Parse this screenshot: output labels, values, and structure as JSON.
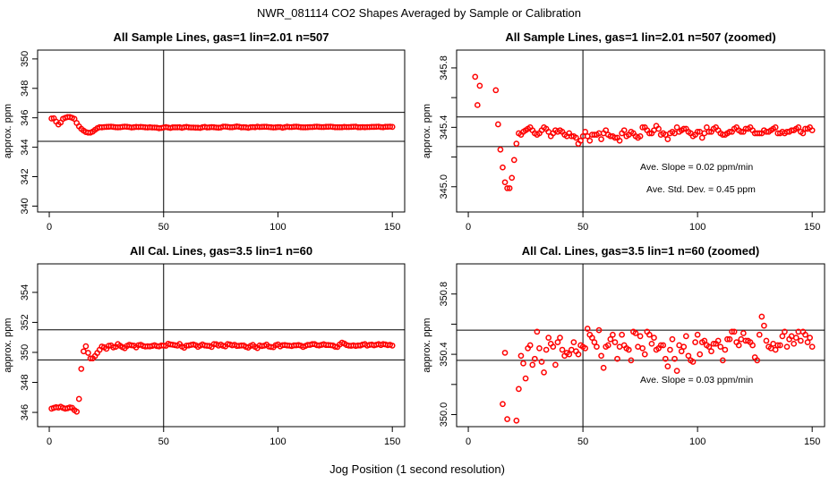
{
  "title": "NWR_081114  CO2 Shapes Averaged by Sample or Calibration",
  "xlabel": "Jog Position (1 second resolution)",
  "colors": {
    "points": "#ff0000",
    "axes": "#000000"
  },
  "chart_data": {
    "type": "scatter",
    "x_start": 1,
    "xlim": [
      -5.1,
      155.4
    ],
    "xticks": [
      0,
      50,
      100,
      150
    ],
    "vline_x": 50,
    "datasets": {
      "sample": [
        345.95,
        345.97,
        345.74,
        345.55,
        345.68,
        345.93,
        346.0,
        346.05,
        346.05,
        346.0,
        345.93,
        345.65,
        345.42,
        345.25,
        345.13,
        345.03,
        344.99,
        344.99,
        345.06,
        345.18,
        345.29,
        345.36,
        345.35,
        345.37,
        345.38,
        345.39,
        345.4,
        345.38,
        345.36,
        345.35,
        345.36,
        345.38,
        345.4,
        345.39,
        345.37,
        345.34,
        345.36,
        345.38,
        345.37,
        345.38,
        345.37,
        345.35,
        345.34,
        345.36,
        345.34,
        345.34,
        345.33,
        345.29,
        345.31,
        345.34,
        345.37,
        345.34,
        345.31,
        345.35,
        345.35,
        345.35,
        345.36,
        345.32,
        345.36,
        345.38,
        345.35,
        345.34,
        345.34,
        345.33,
        345.33,
        345.31,
        345.36,
        345.38,
        345.34,
        345.35,
        345.37,
        345.36,
        345.34,
        345.33,
        345.34,
        345.4,
        345.4,
        345.38,
        345.36,
        345.36,
        345.38,
        345.41,
        345.39,
        345.35,
        345.36,
        345.35,
        345.32,
        345.36,
        345.37,
        345.36,
        345.4,
        345.37,
        345.38,
        345.39,
        345.39,
        345.37,
        345.36,
        345.34,
        345.35,
        345.37,
        345.37,
        345.33,
        345.36,
        345.4,
        345.37,
        345.37,
        345.39,
        345.4,
        345.38,
        345.36,
        345.35,
        345.35,
        345.36,
        345.37,
        345.37,
        345.39,
        345.4,
        345.38,
        345.37,
        345.37,
        345.39,
        345.39,
        345.4,
        345.38,
        345.36,
        345.36,
        345.36,
        345.36,
        345.38,
        345.37,
        345.37,
        345.38,
        345.39,
        345.4,
        345.36,
        345.36,
        345.37,
        345.36,
        345.37,
        345.37,
        345.38,
        345.38,
        345.39,
        345.4,
        345.37,
        345.36,
        345.39,
        345.39,
        345.4,
        345.38
      ],
      "cal": [
        346.25,
        346.3,
        346.35,
        346.32,
        346.38,
        346.3,
        346.25,
        346.28,
        346.33,
        346.3,
        346.15,
        346.05,
        346.9,
        348.9,
        350.07,
        350.41,
        349.97,
        349.6,
        349.6,
        349.75,
        349.96,
        350.17,
        350.39,
        350.34,
        350.24,
        350.44,
        350.46,
        350.33,
        350.37,
        350.55,
        350.44,
        350.35,
        350.28,
        350.43,
        350.51,
        350.47,
        350.45,
        350.33,
        350.48,
        350.51,
        350.43,
        350.39,
        350.41,
        350.4,
        350.43,
        350.48,
        350.42,
        350.4,
        350.46,
        350.45,
        350.44,
        350.57,
        350.53,
        350.51,
        350.48,
        350.45,
        350.56,
        350.39,
        350.31,
        350.45,
        350.46,
        350.5,
        350.53,
        350.48,
        350.37,
        350.45,
        350.53,
        350.46,
        350.44,
        350.43,
        350.36,
        350.55,
        350.54,
        350.45,
        350.52,
        350.44,
        350.4,
        350.55,
        350.53,
        350.47,
        350.51,
        350.43,
        350.44,
        350.46,
        350.46,
        350.37,
        350.32,
        350.43,
        350.5,
        350.37,
        350.29,
        350.46,
        350.42,
        350.45,
        350.52,
        350.39,
        350.36,
        350.35,
        350.48,
        350.53,
        350.4,
        350.48,
        350.49,
        350.46,
        350.45,
        350.42,
        350.47,
        350.47,
        350.49,
        350.45,
        350.36,
        350.43,
        350.5,
        350.5,
        350.55,
        350.55,
        350.48,
        350.46,
        350.5,
        350.54,
        350.49,
        350.49,
        350.48,
        350.46,
        350.38,
        350.36,
        350.53,
        350.65,
        350.59,
        350.49,
        350.45,
        350.44,
        350.47,
        350.43,
        350.46,
        350.46,
        350.52,
        350.55,
        350.45,
        350.5,
        350.52,
        350.47,
        350.51,
        350.55,
        350.49,
        350.55,
        350.53,
        350.48,
        350.51,
        350.45
      ]
    },
    "panels": [
      {
        "title": "All Sample Lines, gas=1 lin=2.01 n=507",
        "dataset": "sample",
        "ylabel": "approx. ppm",
        "ylim": [
          339.6,
          350.6
        ],
        "yticks": [
          340,
          342,
          344,
          346,
          348,
          350
        ],
        "ylabels": [
          "340",
          "342",
          "344",
          "346",
          "348",
          "350"
        ],
        "hlines": [
          346.37,
          344.4
        ],
        "annotations": []
      },
      {
        "title": "All Sample Lines, gas=1 lin=2.01 n=507 (zoomed)",
        "dataset": "sample",
        "ylabel": "approx. ppm",
        "ylim": [
          344.83,
          345.92
        ],
        "yticks": [
          345.0,
          345.2,
          345.4,
          345.6,
          345.8
        ],
        "ylabels": [
          "345.0",
          "",
          "345.4",
          "",
          "345.8"
        ],
        "hlines": [
          345.47,
          345.27
        ],
        "annotations": [
          "Ave. Slope =  0.02  ppm/min",
          "Ave. Std. Dev. =  0.45  ppm"
        ]
      },
      {
        "title": "All Cal. Lines, gas=3.5 lin=1 n=60",
        "dataset": "cal",
        "ylabel": "approx. ppm",
        "ylim": [
          345.05,
          355.9
        ],
        "yticks": [
          346,
          348,
          350,
          352,
          354
        ],
        "ylabels": [
          "346",
          "348",
          "350",
          "352",
          "354"
        ],
        "hlines": [
          351.5,
          349.5
        ],
        "annotations": []
      },
      {
        "title": "All Cal. Lines, gas=3.5 lin=1 n=60 (zoomed)",
        "dataset": "cal",
        "ylabel": "approx. ppm",
        "ylim": [
          349.92,
          351.0
        ],
        "yticks": [
          350.0,
          350.2,
          350.4,
          350.6,
          350.8
        ],
        "ylabels": [
          "350.0",
          "",
          "350.4",
          "",
          "350.8"
        ],
        "hlines": [
          350.56,
          350.36
        ],
        "annotations": [
          "Ave. Slope =  0.03  ppm/min"
        ]
      }
    ]
  }
}
